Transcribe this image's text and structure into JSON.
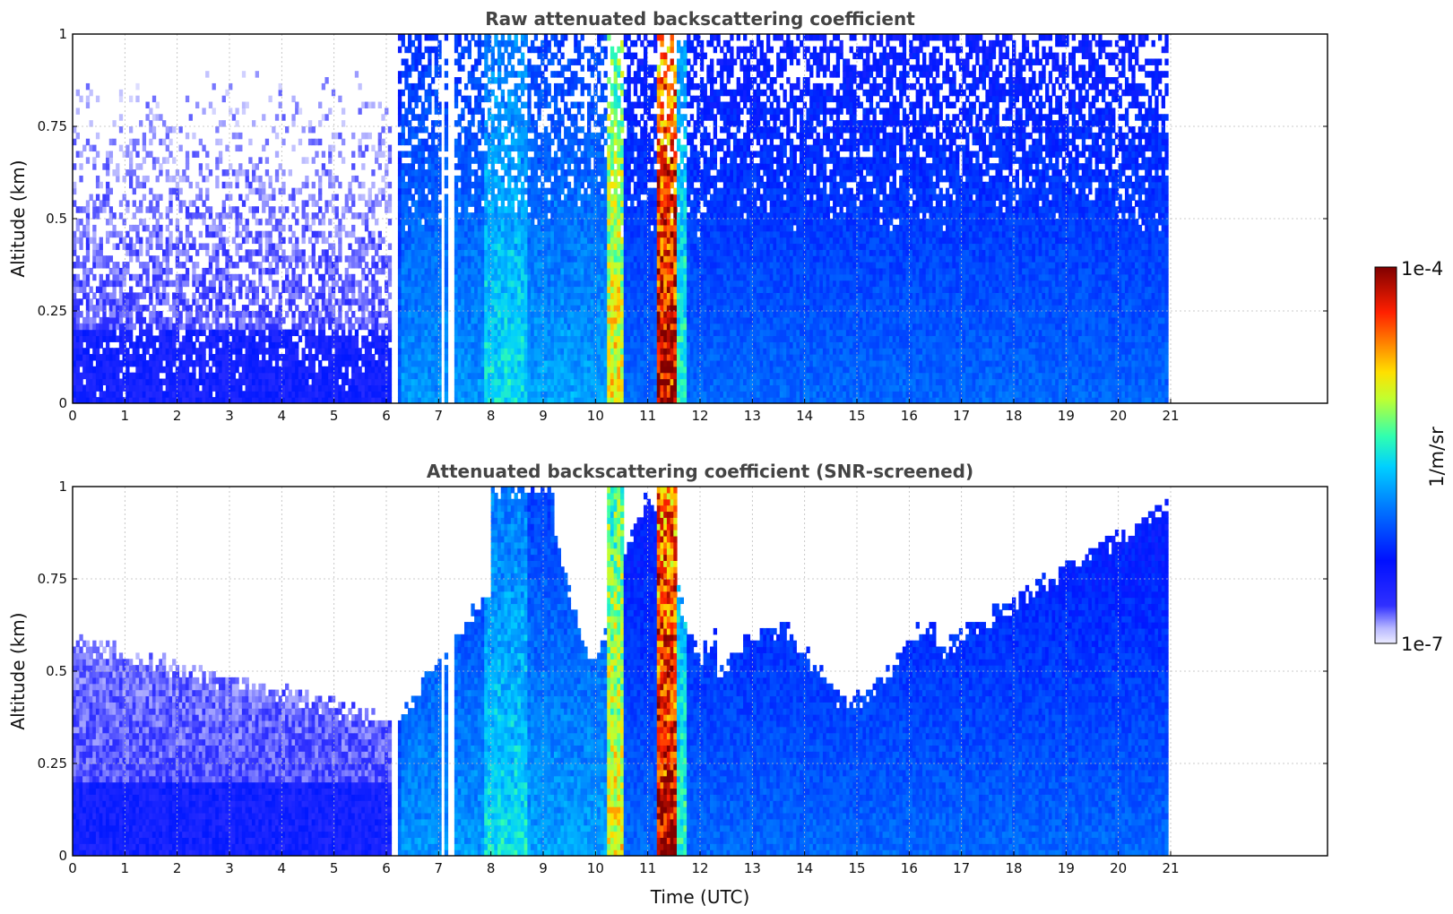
{
  "chart_data": [
    {
      "type": "heatmap",
      "title": "Raw attenuated backscattering coefficient",
      "xlabel": "",
      "ylabel": "Altitude (km)",
      "xlim": [
        0,
        24
      ],
      "ylim": [
        0,
        1
      ],
      "xticks": [
        "0",
        "1",
        "2",
        "3",
        "4",
        "5",
        "6",
        "7",
        "8",
        "9",
        "10",
        "11",
        "12",
        "13",
        "14",
        "15",
        "16",
        "17",
        "18",
        "19",
        "20",
        "21"
      ],
      "yticks": [
        "0",
        "0.25",
        "0.5",
        "0.75",
        "1"
      ],
      "data_end_hour": 20.95,
      "colorscale": "jet",
      "grid": true
    },
    {
      "type": "heatmap",
      "title": "Attenuated backscattering coefficient (SNR-screened)",
      "xlabel": "Time (UTC)",
      "ylabel": "Altitude (km)",
      "xlim": [
        0,
        24
      ],
      "ylim": [
        0,
        1
      ],
      "xticks": [
        "0",
        "1",
        "2",
        "3",
        "4",
        "5",
        "6",
        "7",
        "8",
        "9",
        "10",
        "11",
        "12",
        "13",
        "14",
        "15",
        "16",
        "17",
        "18",
        "19",
        "20",
        "21"
      ],
      "yticks": [
        "0",
        "0.25",
        "0.5",
        "0.75",
        "1"
      ],
      "data_end_hour": 20.95,
      "colorscale": "jet",
      "grid": true
    }
  ],
  "colorbar": {
    "label": "1/m/sr",
    "max_label": "1e-4",
    "min_label": "1e-7",
    "scale": "log"
  }
}
